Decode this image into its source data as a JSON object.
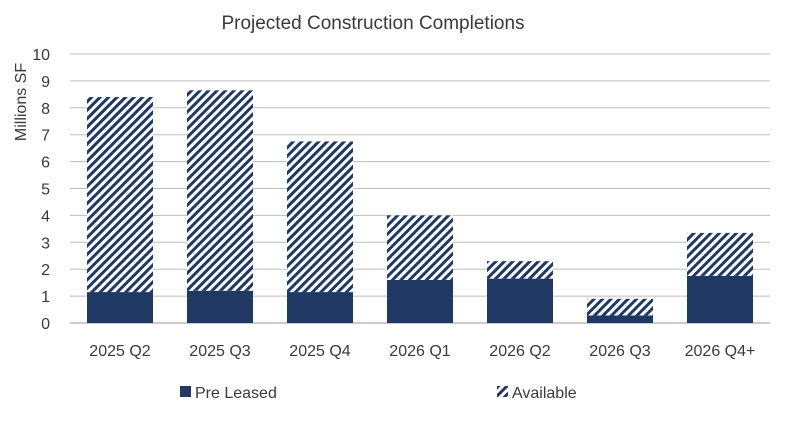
{
  "chart_data": {
    "type": "bar",
    "stacked": true,
    "title": "Projected Construction Completions",
    "xlabel": "",
    "ylabel": "Millions SF",
    "ylim": [
      0,
      10
    ],
    "yticks": [
      0,
      1,
      2,
      3,
      4,
      5,
      6,
      7,
      8,
      9,
      10
    ],
    "grid": true,
    "legend_position": "bottom",
    "categories": [
      "2025 Q2",
      "2025 Q3",
      "2025 Q4",
      "2026 Q1",
      "2026 Q2",
      "2026 Q3",
      "2026 Q4+"
    ],
    "series": [
      {
        "name": "Pre Leased",
        "values": [
          1.15,
          1.2,
          1.15,
          1.6,
          1.65,
          0.28,
          1.75
        ],
        "color": "#1f3864",
        "pattern": "solid"
      },
      {
        "name": "Available",
        "values": [
          7.25,
          7.45,
          5.6,
          2.4,
          0.65,
          0.62,
          1.6
        ],
        "color": "#1f3864",
        "pattern": "diagonal-hatch"
      }
    ]
  }
}
